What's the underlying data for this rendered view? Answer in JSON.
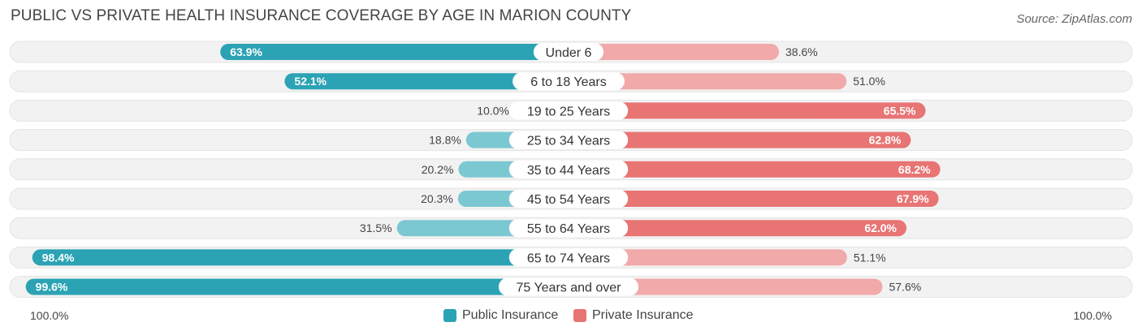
{
  "title": "PUBLIC VS PRIVATE HEALTH INSURANCE COVERAGE BY AGE IN MARION COUNTY",
  "source": "Source: ZipAtlas.com",
  "colors": {
    "public": "#2ba3b4",
    "public_light": "#7cc8d2",
    "private": "#e87474",
    "private_light": "#f2a9a9",
    "row_bg": "#f2f2f2"
  },
  "legend": {
    "public_label": "Public Insurance",
    "private_label": "Private Insurance"
  },
  "axis": {
    "left_label": "100.0%",
    "right_label": "100.0%"
  },
  "chart_data": {
    "type": "bar",
    "orientation": "horizontal-diverging",
    "categories": [
      "Under 6",
      "6 to 18 Years",
      "19 to 25 Years",
      "25 to 34 Years",
      "35 to 44 Years",
      "45 to 54 Years",
      "55 to 64 Years",
      "65 to 74 Years",
      "75 Years and over"
    ],
    "series": [
      {
        "name": "Public Insurance",
        "values": [
          63.9,
          52.1,
          10.0,
          18.8,
          20.2,
          20.3,
          31.5,
          98.4,
          99.6
        ],
        "labels": [
          "63.9%",
          "52.1%",
          "10.0%",
          "18.8%",
          "20.2%",
          "20.3%",
          "31.5%",
          "98.4%",
          "99.6%"
        ]
      },
      {
        "name": "Private Insurance",
        "values": [
          38.6,
          51.0,
          65.5,
          62.8,
          68.2,
          67.9,
          62.0,
          51.1,
          57.6
        ],
        "labels": [
          "38.6%",
          "51.0%",
          "65.5%",
          "62.8%",
          "68.2%",
          "67.9%",
          "62.0%",
          "51.1%",
          "57.6%"
        ]
      }
    ],
    "xlim": [
      -100,
      100
    ],
    "legend_position": "bottom-center"
  }
}
